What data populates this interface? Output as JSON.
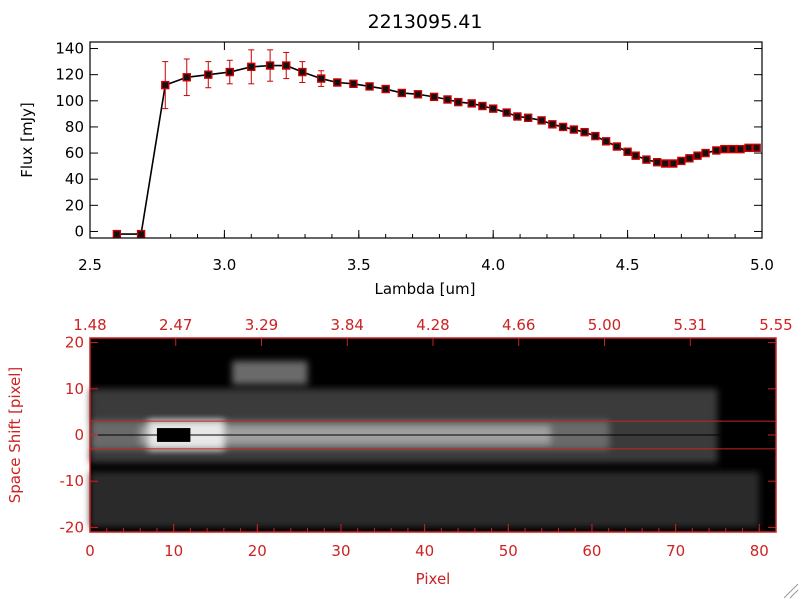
{
  "title": "2213095.41",
  "chart_data": [
    {
      "type": "line",
      "title": "2213095.41",
      "xlabel": "Lambda [um]",
      "ylabel": "Flux [mJy]",
      "xlim": [
        2.5,
        5.0
      ],
      "ylim": [
        -5,
        145
      ],
      "x_ticks": [
        "2.5",
        "3.0",
        "3.5",
        "4.0",
        "4.5",
        "5.0"
      ],
      "y_ticks": [
        "0",
        "20",
        "40",
        "60",
        "80",
        "100",
        "120",
        "140"
      ],
      "x_tick_values": [
        2.5,
        3.0,
        3.5,
        4.0,
        4.5,
        5.0
      ],
      "y_tick_values": [
        0,
        20,
        40,
        60,
        80,
        100,
        120,
        140
      ],
      "series": [
        {
          "x": [
            2.6,
            2.69,
            2.78,
            2.86,
            2.94,
            3.02,
            3.1,
            3.17,
            3.23,
            3.29,
            3.36,
            3.42,
            3.48,
            3.54,
            3.6,
            3.66,
            3.72,
            3.78,
            3.83,
            3.87,
            3.92,
            3.96,
            4.0,
            4.05,
            4.09,
            4.13,
            4.18,
            4.22,
            4.26,
            4.3,
            4.34,
            4.38,
            4.42,
            4.46,
            4.5,
            4.53,
            4.57,
            4.61,
            4.64,
            4.67,
            4.7,
            4.73,
            4.76,
            4.79,
            4.83,
            4.86,
            4.89,
            4.92,
            4.95,
            4.98
          ],
          "y": [
            -2,
            -2,
            112,
            118,
            120,
            122,
            126,
            127,
            127,
            122,
            117,
            114,
            113,
            111,
            109,
            106,
            105,
            103,
            101,
            99,
            98,
            96,
            94,
            91,
            88,
            87,
            85,
            82,
            80,
            78,
            76,
            73,
            69,
            65,
            61,
            58,
            55,
            53,
            52,
            52,
            54,
            56,
            58,
            60,
            62,
            63,
            63,
            63,
            64,
            64
          ],
          "err": [
            0,
            0,
            18,
            14,
            10,
            9,
            13,
            12,
            10,
            8,
            6,
            0,
            0,
            0,
            0,
            0,
            0,
            0,
            0,
            0,
            0,
            0,
            0,
            0,
            0,
            0,
            0,
            0,
            0,
            0,
            0,
            0,
            0,
            0,
            0,
            0,
            0,
            0,
            0,
            0,
            0,
            0,
            0,
            0,
            0,
            0,
            0,
            0,
            0,
            0
          ]
        }
      ],
      "colors": {
        "line": "#000000",
        "marker": "#cc0000",
        "error": "#cc0000"
      }
    },
    {
      "type": "heatmap",
      "xlabel": "Pixel",
      "ylabel": "Space Shift [pixel]",
      "xlim": [
        0,
        82
      ],
      "ylim": [
        -21,
        21
      ],
      "x_ticks": [
        "0",
        "10",
        "20",
        "30",
        "40",
        "50",
        "60",
        "70",
        "80"
      ],
      "y_ticks": [
        "-20",
        "-10",
        "0",
        "10",
        "20"
      ],
      "x_tick_values": [
        0,
        10,
        20,
        30,
        40,
        50,
        60,
        70,
        80
      ],
      "y_tick_values": [
        -20,
        -10,
        0,
        10,
        20
      ],
      "top_ticks": [
        "1.48",
        "2.47",
        "3.29",
        "3.84",
        "4.28",
        "4.66",
        "5.00",
        "5.31",
        "5.55"
      ],
      "aperture_lines": [
        3,
        -3
      ],
      "colors": {
        "axis": "#cc2222",
        "aperture": "#cc2222"
      }
    }
  ]
}
